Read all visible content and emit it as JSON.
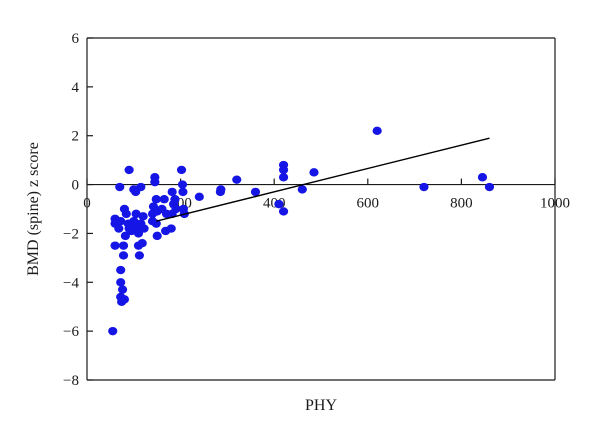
{
  "chart_data": {
    "type": "scatter",
    "title": "",
    "xlabel": "PHY",
    "ylabel": "BMD (spine) z score",
    "xlim": [
      0,
      1000
    ],
    "ylim": [
      -8,
      6
    ],
    "xticks": [
      0,
      200,
      400,
      600,
      800,
      1000
    ],
    "yticks": [
      6,
      4,
      2,
      0,
      -2,
      -4,
      -6,
      -8
    ],
    "grid": false,
    "legend": "none",
    "colors": {
      "points": "#1515e6",
      "axes": "#1a1a1a",
      "fit_line": "#000000"
    },
    "zero_line": 0,
    "points": [
      [
        55,
        -6.0
      ],
      [
        60,
        -1.4
      ],
      [
        60,
        -1.6
      ],
      [
        60,
        -2.5
      ],
      [
        65,
        -1.5
      ],
      [
        68,
        -1.8
      ],
      [
        70,
        -0.1
      ],
      [
        72,
        -1.5
      ],
      [
        72,
        -3.5
      ],
      [
        72,
        -4.0
      ],
      [
        72,
        -4.6
      ],
      [
        74,
        -4.8
      ],
      [
        76,
        -4.3
      ],
      [
        78,
        -2.5
      ],
      [
        78,
        -2.9
      ],
      [
        80,
        -1.0
      ],
      [
        80,
        -4.7
      ],
      [
        82,
        -2.1
      ],
      [
        84,
        -1.2
      ],
      [
        88,
        -1.6
      ],
      [
        90,
        -1.8
      ],
      [
        90,
        0.6
      ],
      [
        95,
        -1.7
      ],
      [
        95,
        -1.9
      ],
      [
        100,
        -0.2
      ],
      [
        100,
        -1.5
      ],
      [
        104,
        -0.3
      ],
      [
        105,
        -1.2
      ],
      [
        108,
        -1.7
      ],
      [
        110,
        -2.0
      ],
      [
        110,
        -2.5
      ],
      [
        112,
        -2.9
      ],
      [
        115,
        -0.1
      ],
      [
        115,
        -1.6
      ],
      [
        118,
        -2.4
      ],
      [
        120,
        -1.3
      ],
      [
        122,
        -1.8
      ],
      [
        140,
        -1.2
      ],
      [
        140,
        -1.5
      ],
      [
        142,
        -0.9
      ],
      [
        145,
        0.3
      ],
      [
        145,
        0.1
      ],
      [
        148,
        -0.6
      ],
      [
        148,
        -1.6
      ],
      [
        150,
        -2.1
      ],
      [
        150,
        -1.1
      ],
      [
        160,
        -1.0
      ],
      [
        165,
        -0.6
      ],
      [
        168,
        -1.9
      ],
      [
        170,
        -1.2
      ],
      [
        180,
        -1.8
      ],
      [
        182,
        -0.3
      ],
      [
        182,
        -1.2
      ],
      [
        185,
        -0.8
      ],
      [
        188,
        -0.6
      ],
      [
        190,
        -1.0
      ],
      [
        202,
        0.6
      ],
      [
        204,
        0.0
      ],
      [
        205,
        -0.3
      ],
      [
        206,
        -1.0
      ],
      [
        208,
        -1.2
      ],
      [
        240,
        -0.5
      ],
      [
        285,
        -0.3
      ],
      [
        286,
        -0.2
      ],
      [
        320,
        0.2
      ],
      [
        360,
        -0.3
      ],
      [
        410,
        -0.8
      ],
      [
        420,
        0.8
      ],
      [
        420,
        0.6
      ],
      [
        420,
        0.3
      ],
      [
        420,
        -1.1
      ],
      [
        460,
        -0.2
      ],
      [
        485,
        0.5
      ],
      [
        620,
        2.2
      ],
      [
        720,
        -0.1
      ],
      [
        845,
        0.3
      ],
      [
        860,
        -0.1
      ]
    ],
    "fit_line": [
      [
        148,
        -1.5
      ],
      [
        860,
        1.9
      ]
    ]
  }
}
